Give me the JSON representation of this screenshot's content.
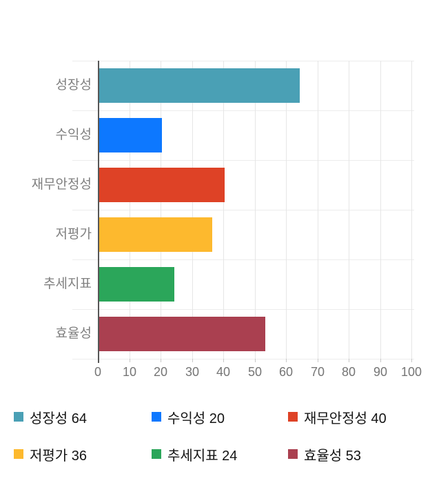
{
  "chart_data": {
    "type": "bar",
    "orientation": "horizontal",
    "title": "",
    "xlabel": "",
    "ylabel": "",
    "xlim": [
      0,
      100
    ],
    "x_ticks": [
      0,
      10,
      20,
      30,
      40,
      50,
      60,
      70,
      80,
      90,
      100
    ],
    "grid": true,
    "legend_position": "bottom",
    "categories": [
      "성장성",
      "수익성",
      "재무안정성",
      "저평가",
      "추세지표",
      "효율성"
    ],
    "values": [
      64,
      20,
      40,
      36,
      24,
      53
    ],
    "series": [
      {
        "name": "성장성",
        "value": 64,
        "color": "#4aa0b5"
      },
      {
        "name": "수익성",
        "value": 20,
        "color": "#0d78ff"
      },
      {
        "name": "재무안정성",
        "value": 40,
        "color": "#de4226"
      },
      {
        "name": "저평가",
        "value": 36,
        "color": "#fdb92e"
      },
      {
        "name": "추세지표",
        "value": 24,
        "color": "#2ba65a"
      },
      {
        "name": "효율성",
        "value": 53,
        "color": "#aa4050"
      }
    ],
    "legend": [
      {
        "label": "성장성",
        "value": 64,
        "color": "#4aa0b5"
      },
      {
        "label": "수익성",
        "value": 20,
        "color": "#0d78ff"
      },
      {
        "label": "재무안정성",
        "value": 40,
        "color": "#de4226"
      },
      {
        "label": "저평가",
        "value": 36,
        "color": "#fdb92e"
      },
      {
        "label": "추세지표",
        "value": 24,
        "color": "#2ba65a"
      },
      {
        "label": "효율성",
        "value": 53,
        "color": "#aa4050"
      }
    ]
  },
  "theme": {
    "background": "#ffffff",
    "axis_color": "#565656",
    "grid_color": "#e6e6e6",
    "band_grid_color": "#ececec",
    "tick_label_color": "#757575",
    "category_label_color": "#808080",
    "legend_text_color": "#141414"
  }
}
